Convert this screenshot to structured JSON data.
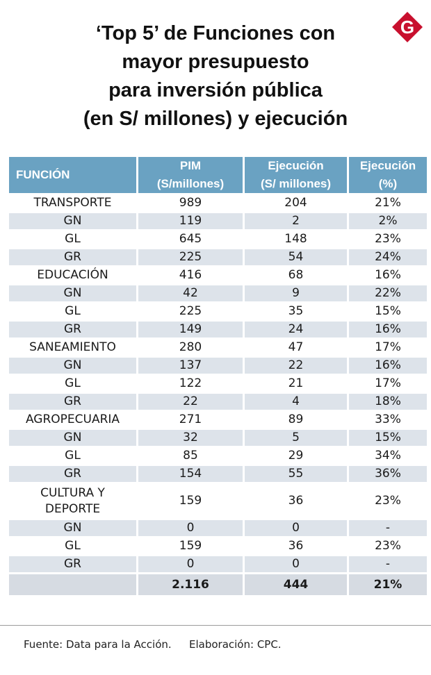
{
  "title_lines": [
    "‘Top 5’ de Funciones con",
    "mayor presupuesto",
    "para inversión pública",
    "(en S/ millones) y ejecución"
  ],
  "logo": {
    "letter": "G",
    "color": "#c8102e"
  },
  "table": {
    "headers": {
      "funcion": "FUNCIÓN",
      "pim_1": "PIM",
      "pim_2": "(S/millones)",
      "ejec_1": "Ejecución",
      "ejec_2": "(S/ millones)",
      "pct_1": "Ejecución",
      "pct_2": "(%)"
    },
    "rows": [
      {
        "name": "TRANSPORTE",
        "pim": "989",
        "ejec": "204",
        "pct": "21%"
      },
      {
        "name": "GN",
        "pim": "119",
        "ejec": "2",
        "pct": "2%"
      },
      {
        "name": "GL",
        "pim": "645",
        "ejec": "148",
        "pct": "23%"
      },
      {
        "name": "GR",
        "pim": "225",
        "ejec": "54",
        "pct": "24%"
      },
      {
        "name": "EDUCACIÓN",
        "pim": "416",
        "ejec": "68",
        "pct": "16%"
      },
      {
        "name": "GN",
        "pim": "42",
        "ejec": "9",
        "pct": "22%"
      },
      {
        "name": "GL",
        "pim": "225",
        "ejec": "35",
        "pct": "15%"
      },
      {
        "name": "GR",
        "pim": "149",
        "ejec": "24",
        "pct": "16%"
      },
      {
        "name": "SANEAMIENTO",
        "pim": "280",
        "ejec": "47",
        "pct": "17%"
      },
      {
        "name": "GN",
        "pim": "137",
        "ejec": "22",
        "pct": "16%"
      },
      {
        "name": "GL",
        "pim": "122",
        "ejec": "21",
        "pct": "17%"
      },
      {
        "name": "GR",
        "pim": "22",
        "ejec": "4",
        "pct": "18%"
      },
      {
        "name": "AGROPECUARIA",
        "pim": "271",
        "ejec": "89",
        "pct": "33%"
      },
      {
        "name": "GN",
        "pim": "32",
        "ejec": "5",
        "pct": "15%"
      },
      {
        "name": "GL",
        "pim": "85",
        "ejec": "29",
        "pct": "34%"
      },
      {
        "name": "GR",
        "pim": "154",
        "ejec": "55",
        "pct": "36%"
      },
      {
        "name_1": "CULTURA Y",
        "name_2": "DEPORTE",
        "pim": "159",
        "ejec": "36",
        "pct": "23%"
      },
      {
        "name": "GN",
        "pim": "0",
        "ejec": "0",
        "pct": "-"
      },
      {
        "name": "GL",
        "pim": "159",
        "ejec": "36",
        "pct": "23%"
      },
      {
        "name": "GR",
        "pim": "0",
        "ejec": "0",
        "pct": "-"
      }
    ],
    "total": {
      "name": "",
      "pim": "2.116",
      "ejec": "444",
      "pct": "21%"
    }
  },
  "footer": {
    "source": "Fuente: Data para la Acción.",
    "credit": "Elaboración: CPC."
  }
}
